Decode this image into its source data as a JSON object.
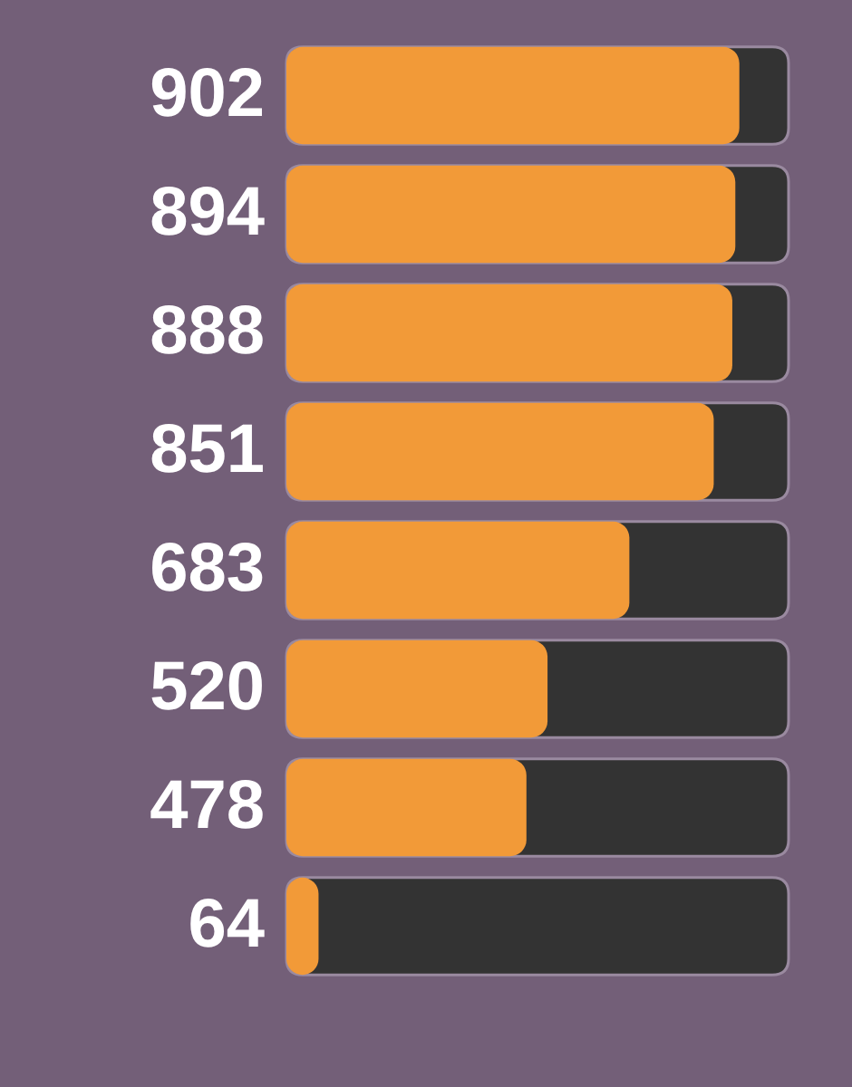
{
  "chart_data": {
    "type": "bar",
    "orientation": "horizontal",
    "categories": [
      null,
      null,
      null,
      null,
      null,
      null,
      null,
      null
    ],
    "values": [
      902,
      894,
      888,
      851,
      683,
      520,
      478,
      64
    ],
    "color": "#f29a38",
    "xlim": [
      0,
      1000
    ],
    "tick_labels": false,
    "data_labels": true,
    "grid": false,
    "legend": false
  }
}
